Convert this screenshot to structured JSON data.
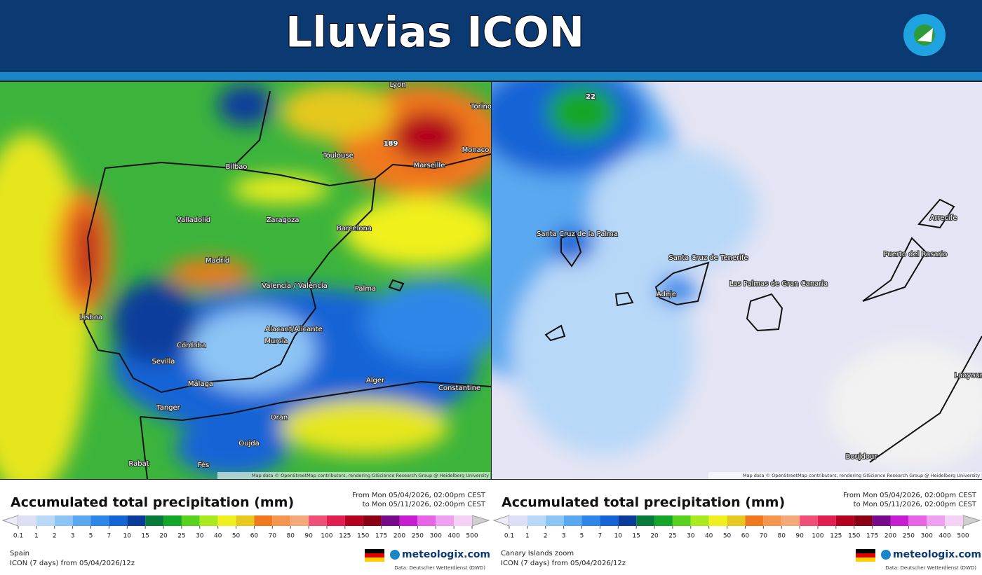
{
  "header": {
    "title": "Lluvias ICON"
  },
  "legend": {
    "title": "Accumulated total precipitation (mm)",
    "from": "From Mon 05/04/2026, 02:00pm CEST",
    "to": "to Mon 05/11/2026, 02:00pm CEST",
    "ticks": [
      0.1,
      1,
      2,
      3,
      5,
      7,
      10,
      15,
      20,
      25,
      30,
      40,
      50,
      60,
      70,
      80,
      90,
      100,
      125,
      150,
      175,
      200,
      250,
      300,
      400,
      500
    ],
    "colors": [
      "#dde0f5",
      "#b8d8f8",
      "#8cc4f5",
      "#5aa8f0",
      "#2e86e8",
      "#1464d6",
      "#0a3c9c",
      "#087a3c",
      "#14a628",
      "#58d21e",
      "#a8ea1e",
      "#f0f01e",
      "#e6c81e",
      "#f0781e",
      "#f59650",
      "#f5a878",
      "#f05078",
      "#e01e50",
      "#b4001e",
      "#8c0014",
      "#780a8c",
      "#c81ed2",
      "#e664e6",
      "#f0a0f0",
      "#f5d2f5"
    ],
    "run": "ICON (7 days) from 05/04/2026/12z",
    "brand": "meteologix.com",
    "source": "Data: Deutscher Wetterdienst (DWD)"
  },
  "attribution": "Map data © OpenStreetMap contributors, rendering GIScience Research Group @ Heidelberg University",
  "panels": [
    {
      "region": "Spain",
      "places": [
        "189",
        "Bilbao",
        "Toulouse",
        "Marseille",
        "Monaco",
        "Torino",
        "Lyon",
        "Valladolid",
        "Zaragoza",
        "Barcelona",
        "Madrid",
        "Valencia / València",
        "Palma",
        "Lisboa",
        "Alacant/Alicante",
        "Murcia",
        "Córdoba",
        "Sevilla",
        "Málaga",
        "Tanger",
        "Alger",
        "Constantine",
        "Oran",
        "Oujda",
        "Rabat",
        "Fès"
      ]
    },
    {
      "region": "Canary Islands zoom",
      "places": [
        "22",
        "Santa Cruz de la Palma",
        "Santa Cruz de Tenerife",
        "Adeje",
        "Las Palmas de Gran Canaria",
        "Arrecife",
        "Puerto del Rosario",
        "Laayoune",
        "Boujdour"
      ]
    }
  ]
}
